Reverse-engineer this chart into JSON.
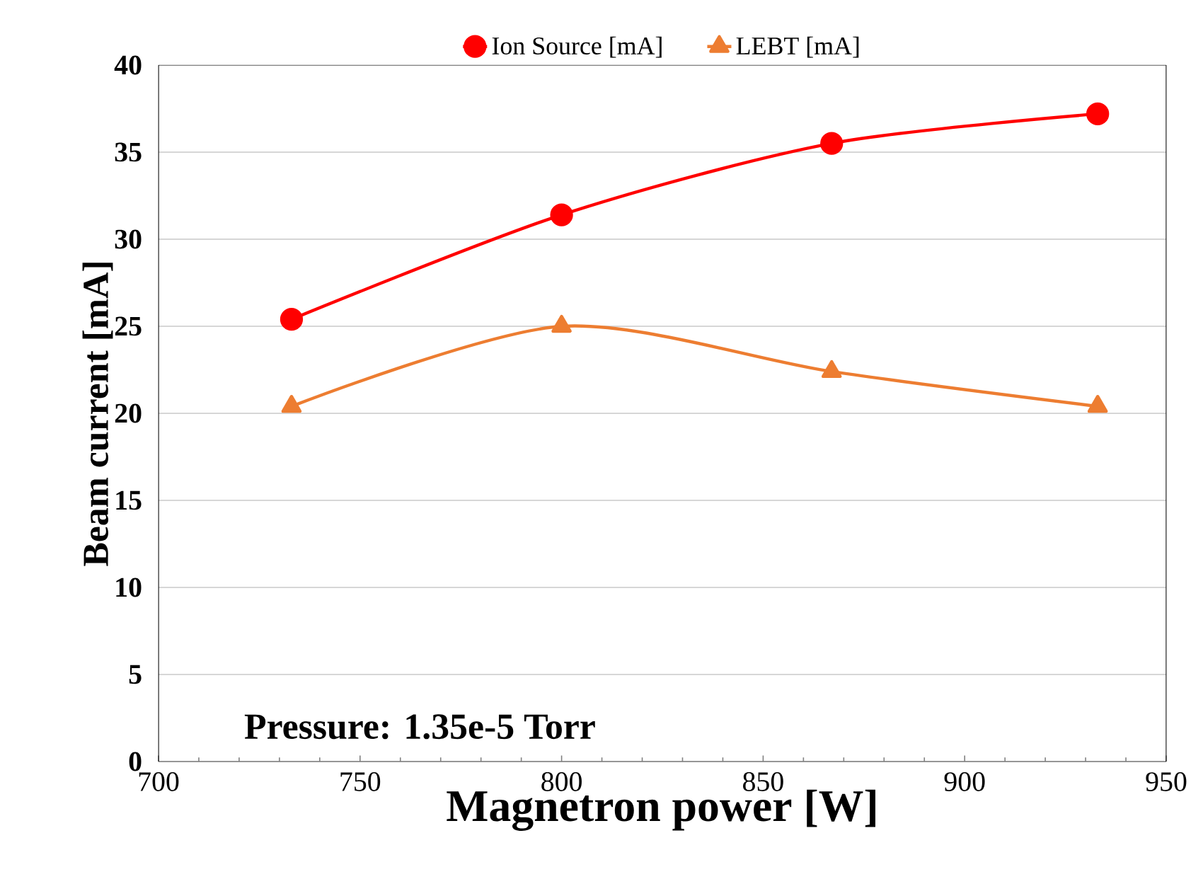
{
  "chart_data": {
    "type": "line",
    "xlabel": "Magnetron power [W]",
    "ylabel": "Beam current [mA]",
    "x": [
      733,
      800,
      867,
      933
    ],
    "series": [
      {
        "name": "Ion Source [mA]",
        "color": "#ff0000",
        "marker": "circle",
        "values": [
          25.4,
          31.4,
          35.5,
          37.2
        ]
      },
      {
        "name": "LEBT [mA]",
        "color": "#ed7d31",
        "marker": "triangle",
        "values": [
          20.4,
          25.0,
          22.4,
          20.4
        ]
      }
    ],
    "xlim": [
      700,
      950
    ],
    "xticks": [
      700,
      750,
      800,
      850,
      900,
      950
    ],
    "ylim": [
      0,
      40
    ],
    "yticks": [
      0,
      5,
      10,
      15,
      20,
      25,
      30,
      35,
      40
    ],
    "grid": "y",
    "legend": "top",
    "annotations": [
      "Pressure: 1.35e-5 Torr"
    ]
  }
}
